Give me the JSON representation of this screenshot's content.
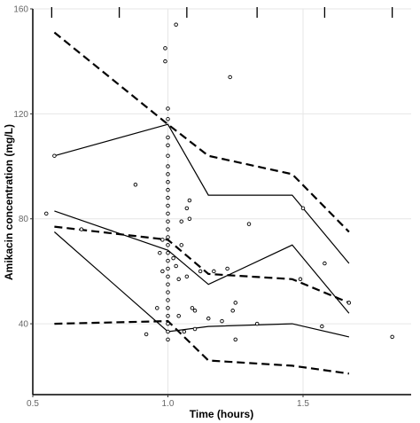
{
  "chart_data": {
    "type": "scatter",
    "xlabel": "Time (hours)",
    "ylabel": "Amikacin concentration (mg/L)",
    "xlim": [
      0.5,
      1.9
    ],
    "ylim": [
      13,
      160
    ],
    "x_ticks": [
      0.5,
      1.0,
      1.5
    ],
    "x_tick_labels": [
      "0.5",
      "1.0",
      "1.5"
    ],
    "y_ticks": [
      40,
      80,
      120,
      160
    ],
    "y_tick_labels": [
      "40",
      "80",
      "120",
      "160"
    ],
    "grid": true,
    "rug_x": [
      0.57,
      0.82,
      1.07,
      1.33,
      1.58,
      1.83
    ],
    "observations": [
      {
        "x": 0.55,
        "y": 82
      },
      {
        "x": 0.58,
        "y": 104
      },
      {
        "x": 0.68,
        "y": 76
      },
      {
        "x": 0.88,
        "y": 93
      },
      {
        "x": 0.92,
        "y": 36
      },
      {
        "x": 0.96,
        "y": 46
      },
      {
        "x": 0.97,
        "y": 67
      },
      {
        "x": 0.98,
        "y": 60
      },
      {
        "x": 0.98,
        "y": 72
      },
      {
        "x": 0.99,
        "y": 140
      },
      {
        "x": 0.99,
        "y": 145
      },
      {
        "x": 1.0,
        "y": 122
      },
      {
        "x": 1.0,
        "y": 118
      },
      {
        "x": 1.0,
        "y": 111
      },
      {
        "x": 1.0,
        "y": 108
      },
      {
        "x": 1.0,
        "y": 104
      },
      {
        "x": 1.0,
        "y": 100
      },
      {
        "x": 1.0,
        "y": 97
      },
      {
        "x": 1.0,
        "y": 94
      },
      {
        "x": 1.0,
        "y": 91
      },
      {
        "x": 1.0,
        "y": 88
      },
      {
        "x": 1.0,
        "y": 85
      },
      {
        "x": 1.0,
        "y": 82
      },
      {
        "x": 1.0,
        "y": 79
      },
      {
        "x": 1.0,
        "y": 76
      },
      {
        "x": 1.0,
        "y": 73
      },
      {
        "x": 1.0,
        "y": 70
      },
      {
        "x": 1.0,
        "y": 67
      },
      {
        "x": 1.0,
        "y": 64
      },
      {
        "x": 1.0,
        "y": 61
      },
      {
        "x": 1.0,
        "y": 58
      },
      {
        "x": 1.0,
        "y": 55
      },
      {
        "x": 1.0,
        "y": 52
      },
      {
        "x": 1.0,
        "y": 49
      },
      {
        "x": 1.0,
        "y": 46
      },
      {
        "x": 1.0,
        "y": 43
      },
      {
        "x": 1.0,
        "y": 40
      },
      {
        "x": 1.0,
        "y": 37
      },
      {
        "x": 1.0,
        "y": 34
      },
      {
        "x": 1.02,
        "y": 65
      },
      {
        "x": 1.03,
        "y": 154
      },
      {
        "x": 1.03,
        "y": 62
      },
      {
        "x": 1.04,
        "y": 43
      },
      {
        "x": 1.04,
        "y": 57
      },
      {
        "x": 1.05,
        "y": 70
      },
      {
        "x": 1.05,
        "y": 79
      },
      {
        "x": 1.06,
        "y": 37
      },
      {
        "x": 1.07,
        "y": 58
      },
      {
        "x": 1.07,
        "y": 84
      },
      {
        "x": 1.08,
        "y": 87
      },
      {
        "x": 1.08,
        "y": 80
      },
      {
        "x": 1.09,
        "y": 46
      },
      {
        "x": 1.1,
        "y": 45
      },
      {
        "x": 1.1,
        "y": 38
      },
      {
        "x": 1.12,
        "y": 60
      },
      {
        "x": 1.15,
        "y": 42
      },
      {
        "x": 1.17,
        "y": 60
      },
      {
        "x": 1.2,
        "y": 41
      },
      {
        "x": 1.22,
        "y": 61
      },
      {
        "x": 1.23,
        "y": 134
      },
      {
        "x": 1.24,
        "y": 45
      },
      {
        "x": 1.25,
        "y": 48
      },
      {
        "x": 1.25,
        "y": 34
      },
      {
        "x": 1.3,
        "y": 78
      },
      {
        "x": 1.33,
        "y": 40
      },
      {
        "x": 1.49,
        "y": 57
      },
      {
        "x": 1.5,
        "y": 84
      },
      {
        "x": 1.57,
        "y": 39
      },
      {
        "x": 1.58,
        "y": 63
      },
      {
        "x": 1.67,
        "y": 48
      },
      {
        "x": 1.83,
        "y": 35
      }
    ],
    "series": [
      {
        "style": "solid",
        "x": [
          0.58,
          1.0,
          1.15,
          1.46,
          1.67
        ],
        "y": [
          104,
          116,
          89,
          89,
          63
        ]
      },
      {
        "style": "solid",
        "x": [
          0.58,
          1.0,
          1.15,
          1.46,
          1.67
        ],
        "y": [
          83,
          68,
          55,
          70,
          44
        ]
      },
      {
        "style": "solid",
        "x": [
          0.58,
          1.0,
          1.15,
          1.46,
          1.67
        ],
        "y": [
          75,
          37,
          39,
          40,
          35
        ]
      },
      {
        "style": "dashed",
        "x": [
          0.58,
          1.0,
          1.15,
          1.46,
          1.67
        ],
        "y": [
          151,
          116,
          104,
          97,
          75
        ]
      },
      {
        "style": "dashed",
        "x": [
          0.58,
          1.0,
          1.15,
          1.46,
          1.67
        ],
        "y": [
          77,
          72,
          59,
          57,
          48
        ]
      },
      {
        "style": "dashed",
        "x": [
          0.58,
          1.0,
          1.15,
          1.46,
          1.67
        ],
        "y": [
          40,
          41,
          26,
          24,
          21
        ]
      }
    ],
    "colors": {
      "line": "#000000",
      "grid": "#e6e6e6",
      "tick_text": "#666666"
    }
  }
}
